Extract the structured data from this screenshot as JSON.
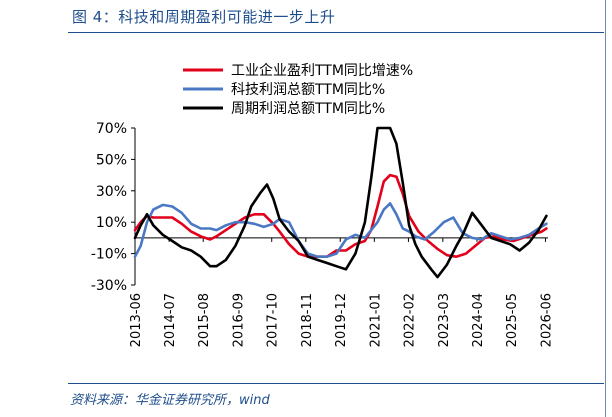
{
  "header": {
    "title": "图 4：科技和周期盈利可能进一步上升"
  },
  "footer": {
    "source": "资料来源：华金证券研究所，wind"
  },
  "chart_data": {
    "type": "line",
    "title": "图 4：科技和周期盈利可能进一步上升",
    "xlabel": "",
    "ylabel": "",
    "ylim": [
      -30,
      70
    ],
    "yticks": [
      -30,
      -10,
      10,
      30,
      50,
      70
    ],
    "ytick_labels": [
      "-30%",
      "-10%",
      "10%",
      "30%",
      "50%",
      "70%"
    ],
    "xlim": [
      2013.42,
      2026.5
    ],
    "x_tick_labels": [
      "2013-06",
      "2014-07",
      "2015-08",
      "2016-09",
      "2017-10",
      "2018-11",
      "2019-12",
      "2021-01",
      "2022-02",
      "2023-03",
      "2024-04",
      "2025-05",
      "2026-06"
    ],
    "x_tick_values": [
      2013.42,
      2014.5,
      2015.58,
      2016.67,
      2017.75,
      2018.83,
      2019.92,
      2021.0,
      2022.08,
      2023.17,
      2024.25,
      2025.33,
      2026.42
    ],
    "legend_position": "top",
    "grid": false,
    "series": [
      {
        "name": "工业企业盈利TTM同比增速%",
        "color": "#e3001b",
        "x": [
          2013.42,
          2013.6,
          2013.8,
          2014.0,
          2014.3,
          2014.6,
          2014.9,
          2015.2,
          2015.5,
          2015.8,
          2016.0,
          2016.3,
          2016.6,
          2016.9,
          2017.2,
          2017.5,
          2017.8,
          2018.0,
          2018.3,
          2018.6,
          2018.9,
          2019.2,
          2019.5,
          2019.8,
          2020.1,
          2020.4,
          2020.7,
          2020.9,
          2021.1,
          2021.3,
          2021.5,
          2021.7,
          2021.9,
          2022.1,
          2022.4,
          2022.7,
          2023.0,
          2023.3,
          2023.6,
          2023.9,
          2024.2,
          2024.5,
          2024.8,
          2025.1,
          2025.4,
          2025.7,
          2026.0,
          2026.3,
          2026.45
        ],
        "y": [
          5,
          10,
          14,
          13,
          13,
          13,
          9,
          4,
          1,
          -1,
          1,
          5,
          9,
          13,
          15,
          15,
          9,
          4,
          -4,
          -10,
          -12,
          -12,
          -12,
          -8,
          -8,
          -4,
          -2,
          5,
          20,
          36,
          40,
          39,
          28,
          14,
          4,
          -2,
          -7,
          -11,
          -12,
          -10,
          -5,
          0,
          1,
          -1,
          -2,
          0,
          2,
          4,
          6
        ]
      },
      {
        "name": "科技利润总额TTM同比%",
        "color": "#4a78c4",
        "x": [
          2013.42,
          2013.6,
          2013.8,
          2014.0,
          2014.3,
          2014.6,
          2014.9,
          2015.2,
          2015.5,
          2015.8,
          2016.0,
          2016.3,
          2016.6,
          2016.9,
          2017.2,
          2017.5,
          2017.8,
          2018.0,
          2018.3,
          2018.6,
          2018.9,
          2019.2,
          2019.5,
          2019.8,
          2020.1,
          2020.4,
          2020.7,
          2020.9,
          2021.1,
          2021.3,
          2021.5,
          2021.7,
          2021.9,
          2022.1,
          2022.3,
          2022.6,
          2022.9,
          2023.2,
          2023.5,
          2023.8,
          2024.1,
          2024.4,
          2024.7,
          2025.0,
          2025.3,
          2025.6,
          2025.9,
          2026.2,
          2026.45
        ],
        "y": [
          -12,
          -5,
          10,
          18,
          21,
          20,
          16,
          9,
          6,
          6,
          5,
          8,
          10,
          10,
          9,
          7,
          9,
          12,
          10,
          -2,
          -10,
          -12,
          -12,
          -10,
          -1,
          2,
          0,
          5,
          10,
          18,
          22,
          15,
          6,
          4,
          1,
          -1,
          4,
          10,
          13,
          3,
          0,
          -1,
          3,
          1,
          -1,
          0,
          2,
          6,
          9
        ]
      },
      {
        "name": "周期利润总额TTM同比%",
        "color": "#000000",
        "x": [
          2013.42,
          2013.6,
          2013.8,
          2014.0,
          2014.3,
          2014.6,
          2014.9,
          2015.2,
          2015.5,
          2015.8,
          2016.0,
          2016.3,
          2016.6,
          2016.9,
          2017.1,
          2017.4,
          2017.6,
          2017.8,
          2018.0,
          2018.3,
          2018.6,
          2018.9,
          2019.2,
          2019.5,
          2019.8,
          2020.1,
          2020.4,
          2020.7,
          2020.9,
          2021.1,
          2021.3,
          2021.5,
          2021.7,
          2021.9,
          2022.1,
          2022.3,
          2022.5,
          2022.8,
          2023.0,
          2023.3,
          2023.6,
          2023.8,
          2024.1,
          2024.4,
          2024.7,
          2025.0,
          2025.3,
          2025.6,
          2025.9,
          2026.2,
          2026.45
        ],
        "y": [
          0,
          8,
          15,
          8,
          2,
          -2,
          -6,
          -8,
          -12,
          -18,
          -18,
          -14,
          -5,
          8,
          20,
          29,
          34,
          25,
          12,
          4,
          -2,
          -12,
          -14,
          -16,
          -18,
          -20,
          -10,
          10,
          38,
          70,
          72,
          70,
          60,
          35,
          8,
          -4,
          -12,
          -20,
          -25,
          -17,
          -5,
          2,
          16,
          8,
          0,
          -2,
          -4,
          -8,
          -3,
          5,
          14
        ]
      }
    ]
  }
}
